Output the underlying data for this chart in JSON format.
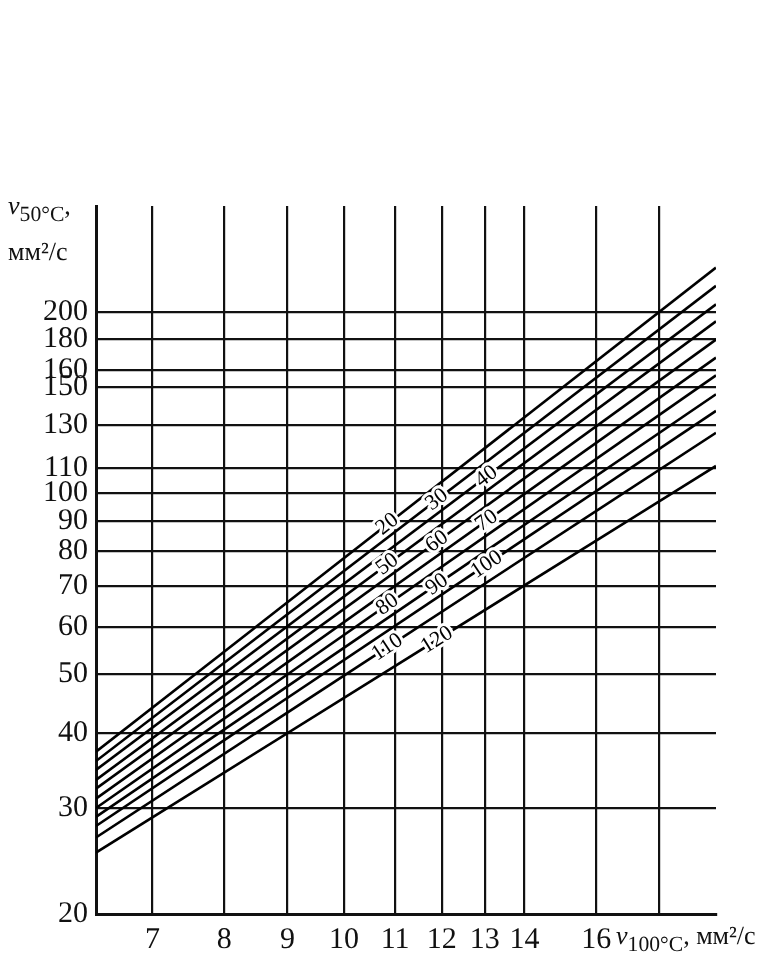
{
  "chart_data": {
    "type": "line",
    "log": "xy",
    "grid": true,
    "legend": false,
    "marker": "none",
    "line_style": "solid",
    "xlabel": "ν$_{100°C}$, мм²/с",
    "ylabel": "ν$_{50°C}$, мм²/с",
    "xlim": [
      6.3,
      20
    ],
    "ylim": [
      20,
      300
    ],
    "xticks": [
      7,
      8,
      9,
      10,
      11,
      12,
      13,
      14,
      16,
      {
        "value": 18,
        "label": null
      }
    ],
    "yticks": [
      20,
      30,
      40,
      50,
      60,
      70,
      80,
      90,
      100,
      110,
      130,
      150,
      160,
      180,
      200
    ],
    "x": [
      6.3,
      20
    ],
    "series": [
      {
        "name": "20",
        "color": "#000000",
        "values": [
          37.2,
          237
        ]
      },
      {
        "name": "30",
        "color": "#000000",
        "values": [
          35.9,
          221
        ]
      },
      {
        "name": "40",
        "color": "#000000",
        "values": [
          34.7,
          206
        ]
      },
      {
        "name": "50",
        "color": "#000000",
        "values": [
          33.4,
          193
        ]
      },
      {
        "name": "60",
        "color": "#000000",
        "values": [
          32.3,
          180
        ]
      },
      {
        "name": "70",
        "color": "#000000",
        "values": [
          31.1,
          168
        ]
      },
      {
        "name": "80",
        "color": "#000000",
        "values": [
          30.0,
          157
        ]
      },
      {
        "name": "90",
        "color": "#000000",
        "values": [
          29.0,
          146
        ]
      },
      {
        "name": "100",
        "color": "#000000",
        "values": [
          28.0,
          137
        ]
      },
      {
        "name": "110",
        "color": "#000000",
        "values": [
          26.8,
          126
        ]
      },
      {
        "name": "120",
        "color": "#000000",
        "values": [
          25.3,
          111
        ]
      }
    ]
  }
}
